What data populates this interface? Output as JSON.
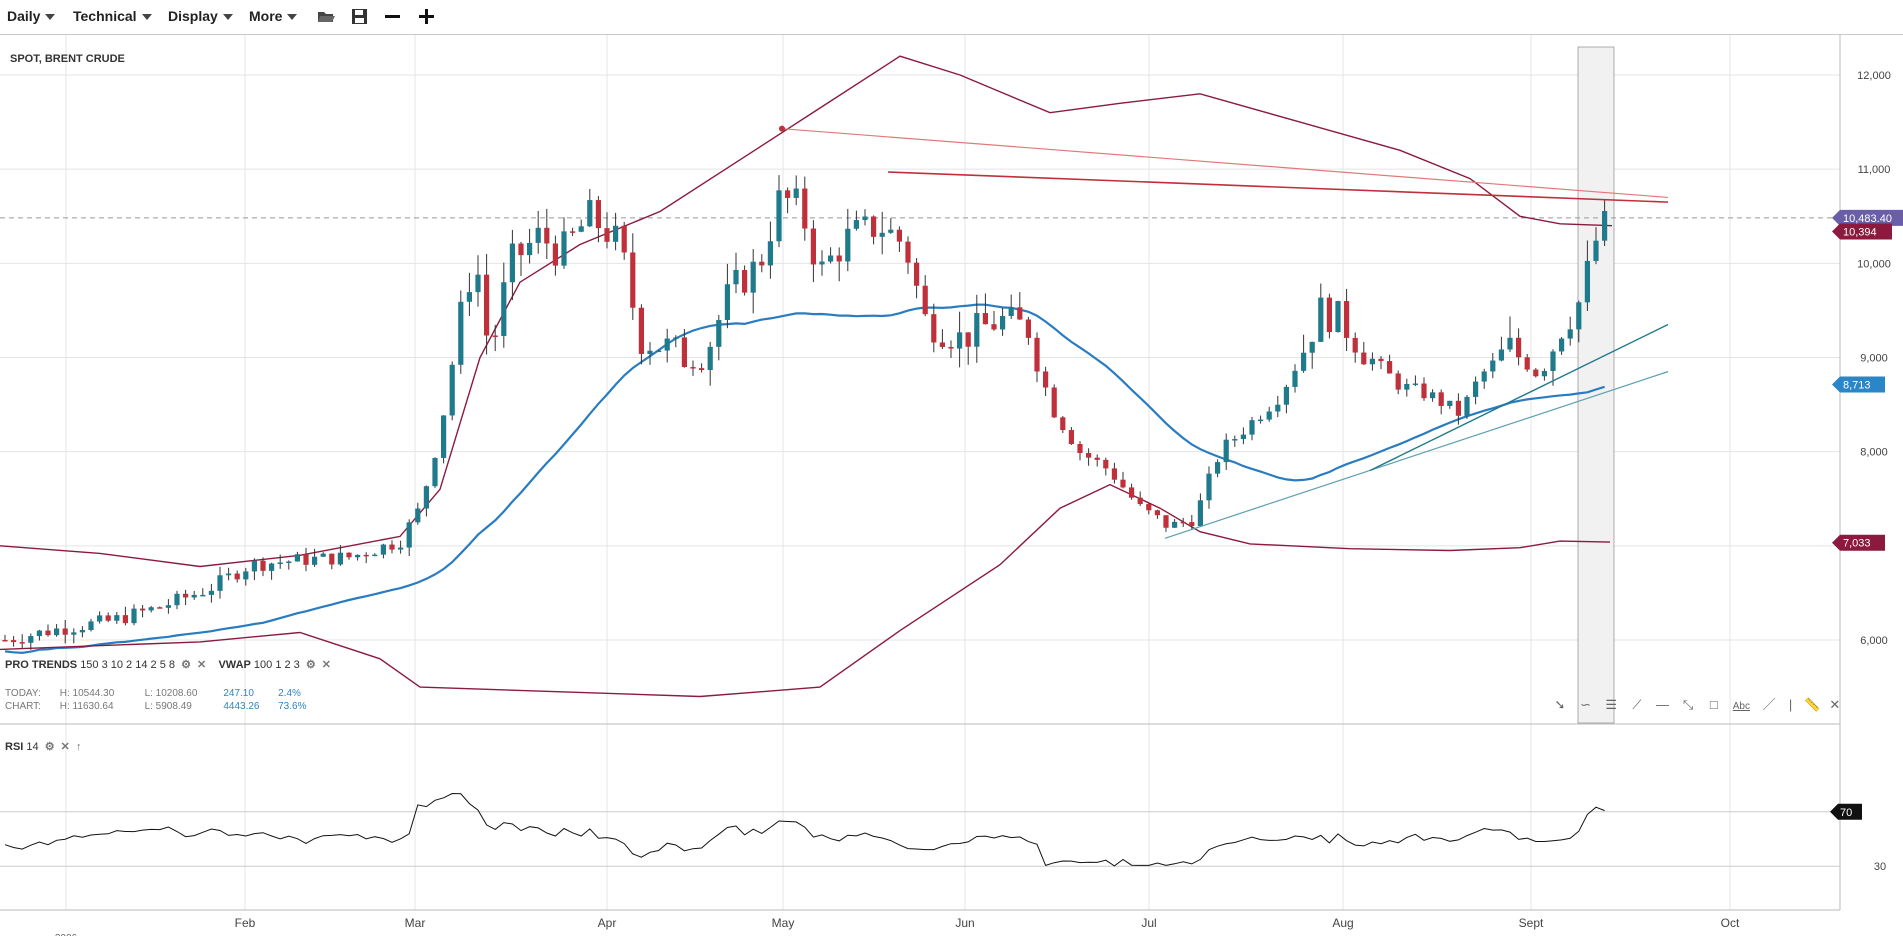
{
  "toolbar": {
    "menus": [
      "Daily",
      "Technical",
      "Display",
      "More"
    ],
    "icons": [
      "folder-open-icon",
      "save-icon",
      "zoom-out-icon",
      "zoom-in-icon"
    ]
  },
  "chart_data": {
    "type": "candlestick",
    "title": "SPOT, BRENT CRUDE",
    "x_labels": [
      "Feb",
      "Mar",
      "Apr",
      "May",
      "Jun",
      "Jul",
      "Aug",
      "Sept",
      "Oct"
    ],
    "x_partial_label": "2006",
    "y_ticks": [
      "12,000",
      "11,000",
      "10,000",
      "9,000",
      "8,000",
      "6,000"
    ],
    "price_badges": [
      {
        "label": "10,483.40",
        "color": "#6b5ea8"
      },
      {
        "label": "10,394",
        "color": "#8b1a3e"
      },
      {
        "label": "8,713",
        "color": "#2a86c6"
      },
      {
        "label": "7,033",
        "color": "#8b1a3e"
      }
    ],
    "current_price": 10483.4,
    "ylim": [
      5400,
      12400
    ],
    "rsi": {
      "label": "RSI",
      "period": "14",
      "ticks": [
        "70",
        "30"
      ],
      "current_label": "70"
    },
    "colors": {
      "up": "#1f7a8c",
      "down": "#c0303a",
      "ma": "#2a7cc0",
      "band": "#8b1a3e",
      "grid": "#e4e4e4"
    }
  },
  "indicators": {
    "pro_trends": {
      "name": "PRO TRENDS",
      "params": "150 3 10 2 14 2 5 8"
    },
    "vwap": {
      "name": "VWAP",
      "params": "100 1 2 3"
    }
  },
  "stats": {
    "today": {
      "label": "TODAY:",
      "high": "H: 10544.30",
      "low": "L: 10208.60",
      "range": "247.10",
      "pct": "2.4%"
    },
    "chart": {
      "label": "CHART:",
      "high": "H: 11630.64",
      "low": "L: 5908.49",
      "range": "4443.26",
      "pct": "73.6%"
    }
  },
  "drawing_tools": [
    "cursor-icon",
    "curve-icon",
    "fibonacci-icon",
    "fan-icon",
    "horizontal-line-icon",
    "ray-icon",
    "rectangle-icon",
    "text-tool-icon",
    "trend-line-icon",
    "separator",
    "ruler-icon",
    "close-icon"
  ],
  "drawing_text_label": "Abc"
}
